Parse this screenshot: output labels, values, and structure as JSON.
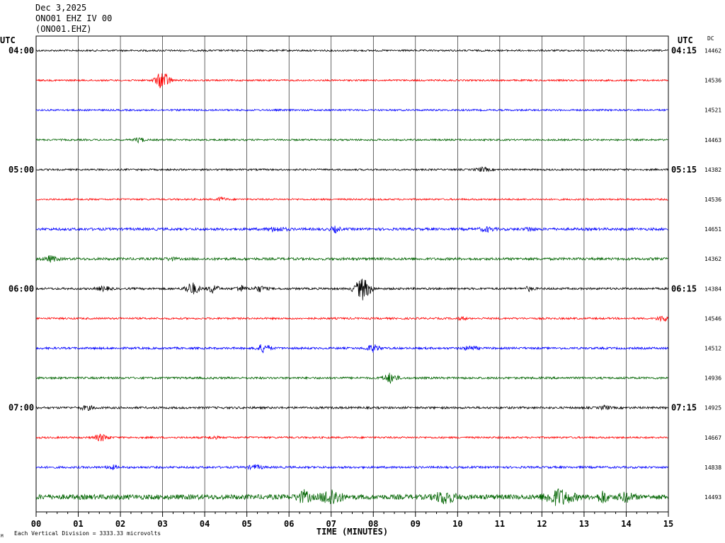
{
  "header": {
    "date": "Dec 3,2025",
    "station": "ONO01 EHZ IV 00",
    "channel": "(ONO01.EHZ)"
  },
  "chart_data": {
    "type": "line",
    "title": "",
    "xlabel": "TIME (MINUTES)",
    "ylabel": "",
    "x_ticks": [
      "00",
      "01",
      "02",
      "03",
      "04",
      "05",
      "06",
      "07",
      "08",
      "09",
      "10",
      "11",
      "12",
      "13",
      "14",
      "15"
    ],
    "xlim": [
      0,
      15
    ],
    "left_axis_title": "UTC",
    "right_axis_title": "UTC",
    "dc_title": "DC",
    "left_time_labels": [
      {
        "row": 0,
        "label": "04:00"
      },
      {
        "row": 4,
        "label": "05:00"
      },
      {
        "row": 8,
        "label": "06:00"
      },
      {
        "row": 12,
        "label": "07:00"
      }
    ],
    "right_time_labels": [
      {
        "row": 0,
        "label": "04:15"
      },
      {
        "row": 4,
        "label": "05:15"
      },
      {
        "row": 8,
        "label": "06:15"
      },
      {
        "row": 12,
        "label": "07:15"
      }
    ],
    "series_colors": [
      "#000000",
      "#ff0000",
      "#0000ff",
      "#006400"
    ],
    "traces": [
      {
        "dc": "14462",
        "color": "#000000",
        "noise": 1.2,
        "events": []
      },
      {
        "dc": "14536",
        "color": "#ff0000",
        "noise": 1.2,
        "events": [
          {
            "minute": 3.0,
            "amp": 14,
            "dur": 0.3
          }
        ]
      },
      {
        "dc": "14521",
        "color": "#0000ff",
        "noise": 1.2,
        "events": []
      },
      {
        "dc": "14463",
        "color": "#006400",
        "noise": 1.2,
        "events": [
          {
            "minute": 2.45,
            "amp": 4,
            "dur": 0.2
          }
        ]
      },
      {
        "dc": "14382",
        "color": "#000000",
        "noise": 1.2,
        "events": [
          {
            "minute": 10.6,
            "amp": 3,
            "dur": 0.3
          }
        ]
      },
      {
        "dc": "14536",
        "color": "#ff0000",
        "noise": 1.2,
        "events": [
          {
            "minute": 4.4,
            "amp": 3,
            "dur": 0.2
          }
        ]
      },
      {
        "dc": "14651",
        "color": "#0000ff",
        "noise": 1.8,
        "events": [
          {
            "minute": 5.7,
            "amp": 3,
            "dur": 0.4
          },
          {
            "minute": 7.1,
            "amp": 4,
            "dur": 0.2
          },
          {
            "minute": 10.7,
            "amp": 3,
            "dur": 0.3
          },
          {
            "minute": 11.7,
            "amp": 3,
            "dur": 0.2
          }
        ]
      },
      {
        "dc": "14362",
        "color": "#006400",
        "noise": 1.8,
        "events": [
          {
            "minute": 0.35,
            "amp": 4,
            "dur": 0.3
          },
          {
            "minute": 3.2,
            "amp": 2,
            "dur": 0.2
          }
        ]
      },
      {
        "dc": "14384",
        "color": "#000000",
        "noise": 1.5,
        "events": [
          {
            "minute": 1.6,
            "amp": 3,
            "dur": 0.3
          },
          {
            "minute": 3.7,
            "amp": 9,
            "dur": 0.3
          },
          {
            "minute": 4.2,
            "amp": 7,
            "dur": 0.2
          },
          {
            "minute": 4.85,
            "amp": 5,
            "dur": 0.2
          },
          {
            "minute": 5.3,
            "amp": 4,
            "dur": 0.3
          },
          {
            "minute": 7.75,
            "amp": 16,
            "dur": 0.35
          },
          {
            "minute": 11.7,
            "amp": 3,
            "dur": 0.2
          }
        ]
      },
      {
        "dc": "14546",
        "color": "#ff0000",
        "noise": 1.3,
        "events": [
          {
            "minute": 10.1,
            "amp": 2,
            "dur": 0.2
          },
          {
            "minute": 14.85,
            "amp": 5,
            "dur": 0.2
          }
        ]
      },
      {
        "dc": "14512",
        "color": "#0000ff",
        "noise": 1.5,
        "events": [
          {
            "minute": 5.4,
            "amp": 6,
            "dur": 0.3
          },
          {
            "minute": 8.0,
            "amp": 5,
            "dur": 0.3
          },
          {
            "minute": 10.3,
            "amp": 3,
            "dur": 0.3
          }
        ]
      },
      {
        "dc": "14936",
        "color": "#006400",
        "noise": 1.5,
        "events": [
          {
            "minute": 8.4,
            "amp": 7,
            "dur": 0.3
          }
        ]
      },
      {
        "dc": "14925",
        "color": "#000000",
        "noise": 1.5,
        "events": [
          {
            "minute": 1.2,
            "amp": 3,
            "dur": 0.3
          },
          {
            "minute": 13.5,
            "amp": 3,
            "dur": 0.2
          }
        ]
      },
      {
        "dc": "14667",
        "color": "#ff0000",
        "noise": 1.3,
        "events": [
          {
            "minute": 1.55,
            "amp": 5,
            "dur": 0.3
          },
          {
            "minute": 4.2,
            "amp": 2,
            "dur": 0.2
          }
        ]
      },
      {
        "dc": "14838",
        "color": "#0000ff",
        "noise": 1.5,
        "events": [
          {
            "minute": 1.8,
            "amp": 3,
            "dur": 0.2
          },
          {
            "minute": 5.2,
            "amp": 3,
            "dur": 0.3
          }
        ]
      },
      {
        "dc": "14493",
        "color": "#006400",
        "noise": 3.5,
        "events": [
          {
            "minute": 6.35,
            "amp": 8,
            "dur": 0.3
          },
          {
            "minute": 7.0,
            "amp": 12,
            "dur": 0.4
          },
          {
            "minute": 9.7,
            "amp": 9,
            "dur": 0.4
          },
          {
            "minute": 12.4,
            "amp": 11,
            "dur": 0.6
          },
          {
            "minute": 13.45,
            "amp": 9,
            "dur": 0.2
          },
          {
            "minute": 14.0,
            "amp": 6,
            "dur": 0.3
          }
        ]
      }
    ]
  },
  "footer": {
    "scale_note": "Each Vertical Division = 3333.33 microvolts",
    "corner_mark": "M"
  }
}
